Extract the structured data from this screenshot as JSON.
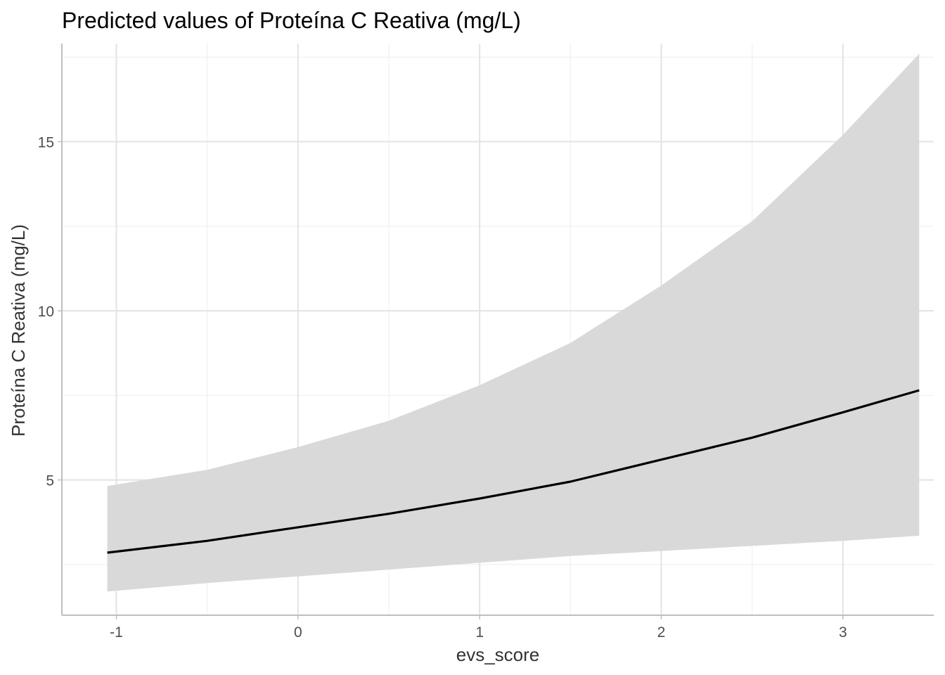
{
  "chart_data": {
    "type": "line",
    "title": "Predicted values of Proteína C Reativa (mg/L)",
    "xlabel": "evs_score",
    "ylabel": "Proteína C Reativa (mg/L)",
    "xlim": [
      -1.3,
      3.5
    ],
    "ylim": [
      1.0,
      17.9
    ],
    "x_ticks": [
      -1,
      0,
      1,
      2,
      3
    ],
    "x_tick_labels": [
      "-1",
      "0",
      "1",
      "2",
      "3"
    ],
    "y_ticks": [
      5,
      10,
      15
    ],
    "y_tick_labels": [
      "5",
      "10",
      "15"
    ],
    "grid": true,
    "legend": "none",
    "series": [
      {
        "x": [
          -1.05,
          -0.5,
          0.0,
          0.5,
          1.0,
          1.5,
          2.0,
          2.5,
          3.0,
          3.42
        ],
        "y": [
          2.85,
          3.2,
          3.6,
          4.0,
          4.45,
          4.95,
          5.6,
          6.25,
          7.0,
          7.65
        ],
        "ci_low": [
          1.7,
          1.95,
          2.15,
          2.35,
          2.55,
          2.75,
          2.9,
          3.05,
          3.2,
          3.35
        ],
        "ci_high": [
          4.82,
          5.3,
          5.97,
          6.75,
          7.8,
          9.05,
          10.75,
          12.65,
          15.2,
          17.6
        ]
      }
    ],
    "colors": {
      "line": "#000000",
      "band": "#d9d9d9",
      "grid_major": "#e3e3e3",
      "grid_minor": "#f0f0f0",
      "axis": "#bfbfbf"
    }
  }
}
